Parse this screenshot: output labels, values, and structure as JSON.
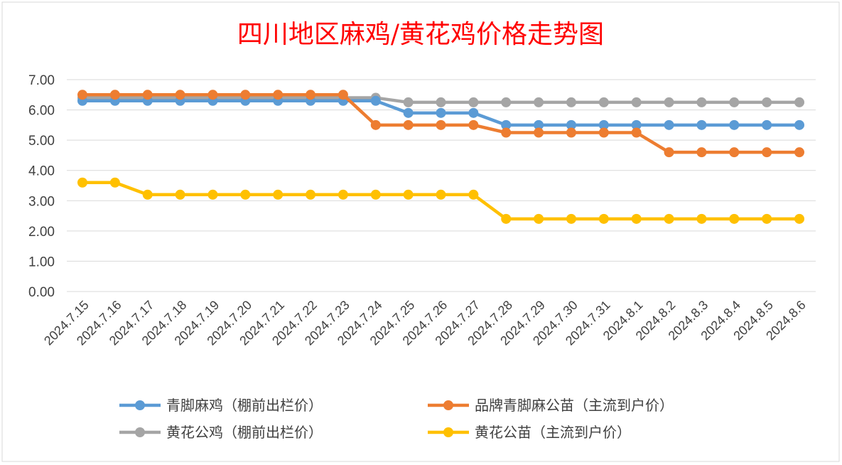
{
  "chart_data": {
    "type": "line",
    "title": "四川地区麻鸡/黄花鸡价格走势图",
    "xlabel": "",
    "ylabel": "",
    "ylim": [
      0,
      7
    ],
    "yticks": [
      "0.00",
      "1.00",
      "2.00",
      "3.00",
      "4.00",
      "5.00",
      "6.00",
      "7.00"
    ],
    "grid": true,
    "legend_position": "bottom",
    "categories": [
      "2024.7.15",
      "2024.7.16",
      "2024.7.17",
      "2024.7.18",
      "2024.7.19",
      "2024.7.20",
      "2024.7.21",
      "2024.7.22",
      "2024.7.23",
      "2024.7.24",
      "2024.7.25",
      "2024.7.26",
      "2024.7.27",
      "2024.7.28",
      "2024.7.29",
      "2024.7.30",
      "2024.7.31",
      "2024.8.1",
      "2024.8.2",
      "2024.8.3",
      "2024.8.4",
      "2024.8.5",
      "2024.8.6"
    ],
    "series": [
      {
        "name": "青脚麻鸡（棚前出栏价）",
        "color": "#5b9bd5",
        "values": [
          6.3,
          6.3,
          6.3,
          6.3,
          6.3,
          6.3,
          6.3,
          6.3,
          6.3,
          6.3,
          5.9,
          5.9,
          5.9,
          5.5,
          5.5,
          5.5,
          5.5,
          5.5,
          5.5,
          5.5,
          5.5,
          5.5,
          5.5
        ]
      },
      {
        "name": "品牌青脚麻公苗（主流到户价）",
        "color": "#ed7d31",
        "values": [
          6.5,
          6.5,
          6.5,
          6.5,
          6.5,
          6.5,
          6.5,
          6.5,
          6.5,
          5.5,
          5.5,
          5.5,
          5.5,
          5.25,
          5.25,
          5.25,
          5.25,
          5.25,
          4.6,
          4.6,
          4.6,
          4.6,
          4.6
        ]
      },
      {
        "name": "黄花公鸡（棚前出栏价）",
        "color": "#a5a5a5",
        "values": [
          6.4,
          6.4,
          6.4,
          6.4,
          6.4,
          6.4,
          6.4,
          6.4,
          6.4,
          6.4,
          6.25,
          6.25,
          6.25,
          6.25,
          6.25,
          6.25,
          6.25,
          6.25,
          6.25,
          6.25,
          6.25,
          6.25,
          6.25
        ]
      },
      {
        "name": "黄花公苗（主流到户价）",
        "color": "#ffc000",
        "values": [
          3.6,
          3.6,
          3.2,
          3.2,
          3.2,
          3.2,
          3.2,
          3.2,
          3.2,
          3.2,
          3.2,
          3.2,
          3.2,
          2.4,
          2.4,
          2.4,
          2.4,
          2.4,
          2.4,
          2.4,
          2.4,
          2.4,
          2.4
        ]
      }
    ]
  }
}
